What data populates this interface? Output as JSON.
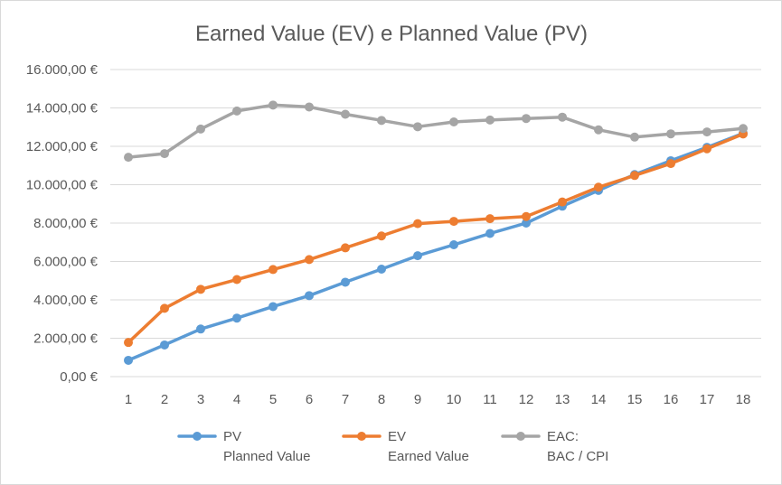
{
  "chart_data": {
    "type": "line",
    "title": "Earned Value (EV) e Planned Value (PV)",
    "xlabel": "",
    "ylabel": "",
    "x": [
      1,
      2,
      3,
      4,
      5,
      6,
      7,
      8,
      9,
      10,
      11,
      12,
      13,
      14,
      15,
      16,
      17,
      18
    ],
    "ylim": [
      0,
      16000
    ],
    "yticks": [
      0,
      2000,
      4000,
      6000,
      8000,
      10000,
      12000,
      14000,
      16000
    ],
    "ytick_labels": [
      "0,00 €",
      "2.000,00 €",
      "4.000,00 €",
      "6.000,00 €",
      "8.000,00 €",
      "10.000,00 €",
      "12.000,00 €",
      "14.000,00 €",
      "16.000,00 €"
    ],
    "grid": true,
    "legend_position": "bottom",
    "series": [
      {
        "name": "PV",
        "subname": "Planned Value",
        "color": "#5b9bd5",
        "values": [
          850,
          1650,
          2480,
          3050,
          3650,
          4220,
          4920,
          5600,
          6300,
          6870,
          7460,
          8000,
          8880,
          9700,
          10530,
          11250,
          11950,
          12680
        ]
      },
      {
        "name": "EV",
        "subname": "Earned Value",
        "color": "#ed7d31",
        "values": [
          1780,
          3560,
          4550,
          5060,
          5580,
          6100,
          6710,
          7330,
          7970,
          8090,
          8230,
          8340,
          9100,
          9870,
          10480,
          11100,
          11870,
          12640
        ]
      },
      {
        "name": "EAC:",
        "subname": "BAC / CPI",
        "color": "#a5a5a5",
        "values": [
          11430,
          11620,
          12900,
          13840,
          14150,
          14050,
          13670,
          13350,
          13020,
          13270,
          13370,
          13450,
          13520,
          12860,
          12480,
          12650,
          12750,
          12930
        ]
      }
    ]
  }
}
